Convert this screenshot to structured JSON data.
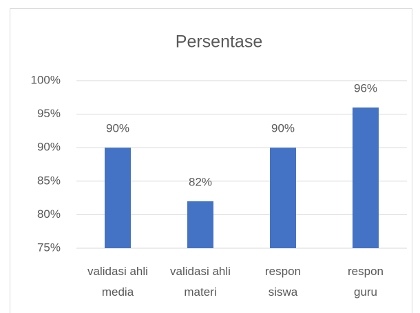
{
  "chart_data": {
    "type": "bar",
    "title": "Persentase",
    "categories": [
      "validasi ahli media",
      "validasi ahli materi",
      "respon siswa",
      "respon guru"
    ],
    "values": [
      90,
      82,
      90,
      96
    ],
    "value_labels": [
      "90%",
      "82%",
      "90%",
      "96%"
    ],
    "color": "#4472c4",
    "ylim": [
      75,
      100
    ],
    "yticks": [
      {
        "value": 75,
        "label": "75%"
      },
      {
        "value": 80,
        "label": "80%"
      },
      {
        "value": 85,
        "label": "85%"
      },
      {
        "value": 90,
        "label": "90%"
      },
      {
        "value": 95,
        "label": "95%"
      },
      {
        "value": 100,
        "label": "100%"
      }
    ],
    "grid": true
  }
}
